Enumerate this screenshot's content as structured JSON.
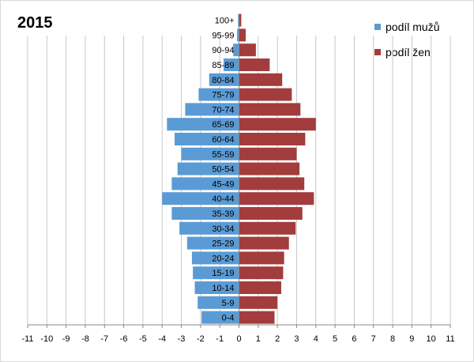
{
  "chart_data": {
    "type": "bar",
    "orientation": "horizontal",
    "title": "2015",
    "categories": [
      "0-4",
      "5-9",
      "10-14",
      "15-19",
      "20-24",
      "25-29",
      "30-34",
      "35-39",
      "40-44",
      "45-49",
      "50-54",
      "55-59",
      "60-64",
      "65-69",
      "70-74",
      "75-79",
      "80-84",
      "85-89",
      "90-94",
      "95-99",
      "100+"
    ],
    "series": [
      {
        "name": "podíl mužů",
        "color": "#5b9bd5",
        "values": [
          -1.95,
          -2.15,
          -2.3,
          -2.4,
          -2.45,
          -2.7,
          -3.1,
          -3.5,
          -4.0,
          -3.5,
          -3.2,
          -3.0,
          -3.35,
          -3.75,
          -2.8,
          -2.1,
          -1.55,
          -0.8,
          -0.3,
          -0.1,
          -0.05
        ]
      },
      {
        "name": "podíl žen",
        "color": "#a33c3c",
        "values": [
          1.85,
          2.0,
          2.2,
          2.3,
          2.35,
          2.6,
          2.95,
          3.3,
          3.9,
          3.4,
          3.15,
          3.0,
          3.45,
          4.0,
          3.2,
          2.75,
          2.25,
          1.6,
          0.88,
          0.35,
          0.12
        ]
      }
    ],
    "x_ticks": [
      -11,
      -10,
      -9,
      -8,
      -7,
      -6,
      -5,
      -4,
      -3,
      -2,
      -1,
      0,
      1,
      2,
      3,
      4,
      5,
      6,
      7,
      8,
      9,
      10,
      11
    ],
    "xlim": [
      -11,
      11
    ],
    "grid": "vertical",
    "legend_position": "top-right"
  }
}
